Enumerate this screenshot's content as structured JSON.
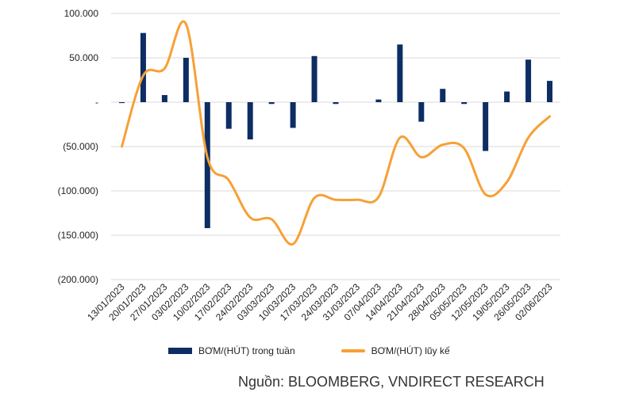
{
  "chart_data": {
    "type": "bar+line",
    "categories": [
      "13/01/2023",
      "20/01/2023",
      "27/01/2023",
      "03/02/2023",
      "10/02/2023",
      "17/02/2023",
      "24/02/2023",
      "03/03/2023",
      "10/03/2023",
      "17/03/2023",
      "24/03/2023",
      "31/03/2023",
      "07/04/2023",
      "14/04/2023",
      "21/04/2023",
      "28/04/2023",
      "05/05/2023",
      "12/05/2023",
      "19/05/2023",
      "26/05/2023",
      "02/06/2023"
    ],
    "series": [
      {
        "name": "BƠM/(HÚT) trong tuần",
        "type": "bar",
        "color": "#0d2d63",
        "values": [
          -1000,
          78000,
          8000,
          50000,
          -142000,
          -30000,
          -42000,
          -2000,
          -29000,
          52000,
          -2000,
          0,
          3000,
          65000,
          -22000,
          15000,
          -2000,
          -55000,
          12000,
          48000,
          24000
        ]
      },
      {
        "name": "BƠM/(HÚT) lũy kế",
        "type": "line",
        "color": "#f7a035",
        "values": [
          -50000,
          30000,
          38000,
          88000,
          -62000,
          -88000,
          -130000,
          -132000,
          -160000,
          -108000,
          -110000,
          -110000,
          -107000,
          -40000,
          -62000,
          -48000,
          -52000,
          -104000,
          -90000,
          -40000,
          -16000
        ]
      }
    ],
    "y_ticks": [
      "100.000",
      "50.000",
      "-",
      "(50.000)",
      "(100.000)",
      "(150.000)",
      "(200.000)"
    ],
    "ylim": [
      -200000,
      100000
    ],
    "grid": true,
    "legend_position": "bottom"
  },
  "source": "Nguồn: BLOOMBERG, VNDIRECT RESEARCH"
}
